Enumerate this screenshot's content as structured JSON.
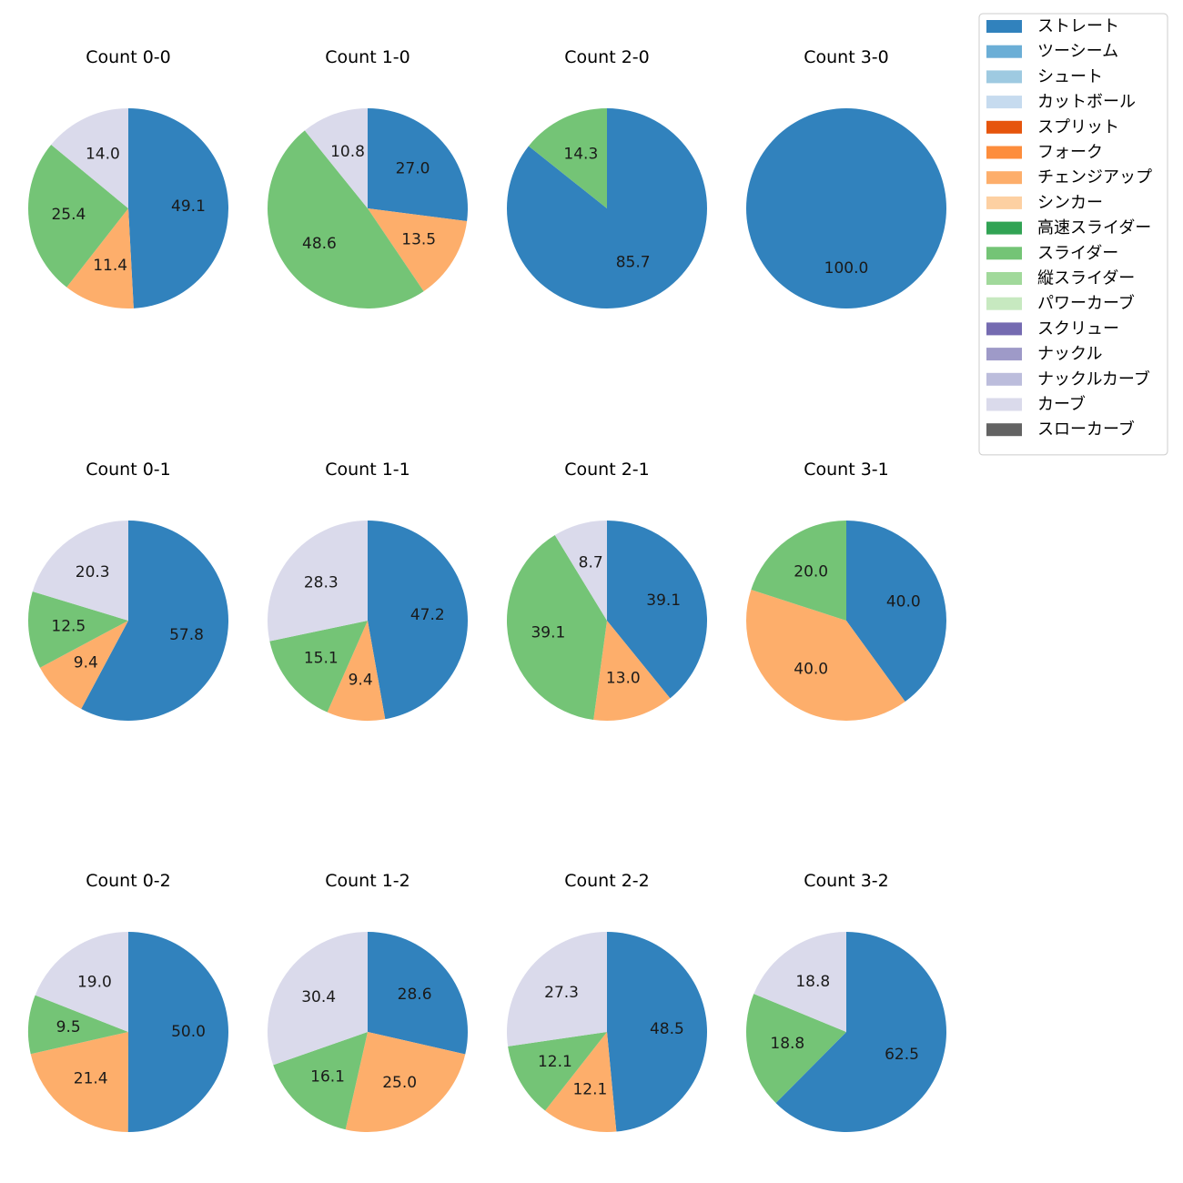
{
  "chart_data": {
    "type": "pie",
    "legend": {
      "placement": "top-right",
      "entries": [
        {
          "name": "ストレート",
          "color": "#3182bd"
        },
        {
          "name": "ツーシーム",
          "color": "#6baed6"
        },
        {
          "name": "シュート",
          "color": "#9ecae1"
        },
        {
          "name": "カットボール",
          "color": "#c6dbef"
        },
        {
          "name": "スプリット",
          "color": "#e6550d"
        },
        {
          "name": "フォーク",
          "color": "#fd8d3c"
        },
        {
          "name": "チェンジアップ",
          "color": "#fdae6b"
        },
        {
          "name": "シンカー",
          "color": "#fdd0a2"
        },
        {
          "name": "高速スライダー",
          "color": "#31a354"
        },
        {
          "name": "スライダー",
          "color": "#74c476"
        },
        {
          "name": "縦スライダー",
          "color": "#a1d99b"
        },
        {
          "name": "パワーカーブ",
          "color": "#c7e9c0"
        },
        {
          "name": "スクリュー",
          "color": "#756bb1"
        },
        {
          "name": "ナックル",
          "color": "#9e9ac8"
        },
        {
          "name": "ナックルカーブ",
          "color": "#bcbddc"
        },
        {
          "name": "カーブ",
          "color": "#dadaeb"
        },
        {
          "name": "スローカーブ",
          "color": "#636363"
        }
      ]
    },
    "pies": [
      {
        "title": "Count 0-0",
        "slices": [
          {
            "pitch": "ストレート",
            "value": 49.1
          },
          {
            "pitch": "チェンジアップ",
            "value": 11.4
          },
          {
            "pitch": "スライダー",
            "value": 25.4
          },
          {
            "pitch": "カーブ",
            "value": 14.0
          }
        ]
      },
      {
        "title": "Count 1-0",
        "slices": [
          {
            "pitch": "ストレート",
            "value": 27.0
          },
          {
            "pitch": "チェンジアップ",
            "value": 13.5
          },
          {
            "pitch": "スライダー",
            "value": 48.6
          },
          {
            "pitch": "カーブ",
            "value": 10.8
          }
        ]
      },
      {
        "title": "Count 2-0",
        "slices": [
          {
            "pitch": "ストレート",
            "value": 85.7
          },
          {
            "pitch": "スライダー",
            "value": 14.3
          }
        ]
      },
      {
        "title": "Count 3-0",
        "slices": [
          {
            "pitch": "ストレート",
            "value": 100.0
          }
        ]
      },
      {
        "title": "Count 0-1",
        "slices": [
          {
            "pitch": "ストレート",
            "value": 57.8
          },
          {
            "pitch": "チェンジアップ",
            "value": 9.4
          },
          {
            "pitch": "スライダー",
            "value": 12.5
          },
          {
            "pitch": "カーブ",
            "value": 20.3
          }
        ]
      },
      {
        "title": "Count 1-1",
        "slices": [
          {
            "pitch": "ストレート",
            "value": 47.2
          },
          {
            "pitch": "チェンジアップ",
            "value": 9.4
          },
          {
            "pitch": "スライダー",
            "value": 15.1
          },
          {
            "pitch": "カーブ",
            "value": 28.3
          }
        ]
      },
      {
        "title": "Count 2-1",
        "slices": [
          {
            "pitch": "ストレート",
            "value": 39.1
          },
          {
            "pitch": "チェンジアップ",
            "value": 13.0
          },
          {
            "pitch": "スライダー",
            "value": 39.1
          },
          {
            "pitch": "カーブ",
            "value": 8.7
          }
        ]
      },
      {
        "title": "Count 3-1",
        "slices": [
          {
            "pitch": "ストレート",
            "value": 40.0
          },
          {
            "pitch": "チェンジアップ",
            "value": 40.0
          },
          {
            "pitch": "スライダー",
            "value": 20.0
          }
        ]
      },
      {
        "title": "Count 0-2",
        "slices": [
          {
            "pitch": "ストレート",
            "value": 50.0
          },
          {
            "pitch": "チェンジアップ",
            "value": 21.4
          },
          {
            "pitch": "スライダー",
            "value": 9.5
          },
          {
            "pitch": "カーブ",
            "value": 19.0
          }
        ]
      },
      {
        "title": "Count 1-2",
        "slices": [
          {
            "pitch": "ストレート",
            "value": 28.6
          },
          {
            "pitch": "チェンジアップ",
            "value": 25.0
          },
          {
            "pitch": "スライダー",
            "value": 16.1
          },
          {
            "pitch": "カーブ",
            "value": 30.4
          }
        ]
      },
      {
        "title": "Count 2-2",
        "slices": [
          {
            "pitch": "ストレート",
            "value": 48.5
          },
          {
            "pitch": "チェンジアップ",
            "value": 12.1
          },
          {
            "pitch": "スライダー",
            "value": 12.1
          },
          {
            "pitch": "カーブ",
            "value": 27.3
          }
        ]
      },
      {
        "title": "Count 3-2",
        "slices": [
          {
            "pitch": "ストレート",
            "value": 62.5
          },
          {
            "pitch": "スライダー",
            "value": 18.8
          },
          {
            "pitch": "カーブ",
            "value": 18.8
          }
        ]
      }
    ]
  }
}
